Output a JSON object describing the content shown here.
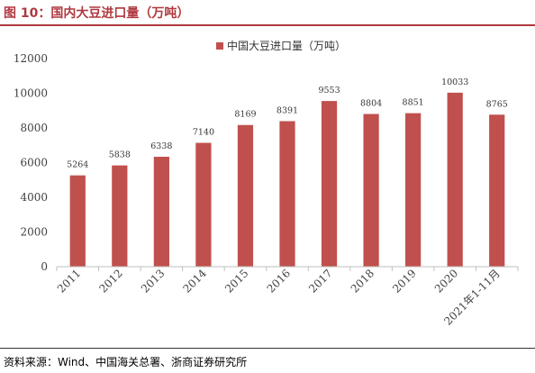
{
  "figure": {
    "title": "图 10：国内大豆进口量（万吨）",
    "source": "资料来源：Wind、中国海关总署、浙商证券研究所"
  },
  "colors": {
    "accent": "#b0393f",
    "bar": "#c0504d",
    "axis": "#bfbfbf"
  },
  "chart_data": {
    "type": "bar",
    "categories": [
      "2011",
      "2012",
      "2013",
      "2014",
      "2015",
      "2016",
      "2017",
      "2018",
      "2019",
      "2020",
      "2021年1-11月"
    ],
    "series": [
      {
        "name": "中国大豆进口量（万吨）",
        "values": [
          5264,
          5838,
          6338,
          7140,
          8169,
          8391,
          9553,
          8804,
          8851,
          10033,
          8765
        ]
      }
    ],
    "yticks": [
      0,
      2000,
      4000,
      6000,
      8000,
      10000,
      12000
    ],
    "ylim": [
      0,
      12000
    ],
    "xlabel": "",
    "ylabel": "",
    "grid": false,
    "legend_position": "top-center",
    "data_labels": true
  }
}
